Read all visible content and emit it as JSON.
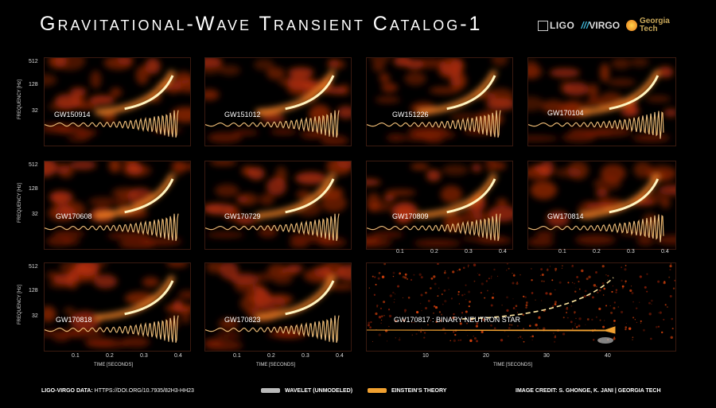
{
  "title": "Gravitational-Wave Transient Catalog-1",
  "logos": {
    "ligo": "LIGO",
    "virgo_pre": "///",
    "virgo": "VIRGO",
    "gt1": "Georgia",
    "gt2": "Tech"
  },
  "axis": {
    "yticks": [
      "512",
      "128",
      "32"
    ],
    "ylabel": "FREQUENCY [Hz]",
    "xticks_small": [
      "0.1",
      "0.2",
      "0.3",
      "0.4"
    ],
    "xticks_big": [
      "10",
      "20",
      "30",
      "40"
    ],
    "xlabel": "TIME [SECONDS]"
  },
  "events": [
    "GW150914",
    "GW151012",
    "GW151226",
    "GW170104",
    "GW170608",
    "GW170729",
    "GW170809",
    "GW170814",
    "GW170818",
    "GW170823",
    "GW170817 : BINARY NEUTRON STAR"
  ],
  "footer": {
    "data_label": "LIGO-VIRGO DATA:",
    "data_url": "HTTPS://DOI.ORG/10.7935/82H3-HH23",
    "wavelet": "WAVELET (UNMODELED)",
    "theory": "EINSTEIN'S THEORY",
    "credit": "IMAGE CREDIT: S. GHONGE, K. JANI | GEORGIA TECH"
  },
  "colors": {
    "wavelet": "#b9b9b9",
    "theory": "#f0a030",
    "bg": "#000000",
    "heat": "#ff5a10"
  }
}
